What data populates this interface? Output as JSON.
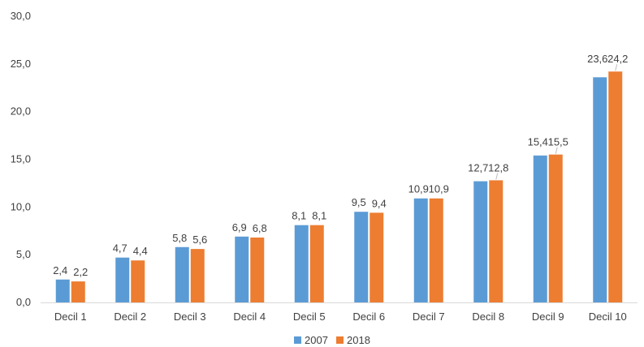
{
  "chart_data": {
    "type": "bar",
    "title": "",
    "xlabel": "",
    "ylabel": "",
    "ylim": [
      0,
      30
    ],
    "yticks": [
      "0,0",
      "5,0",
      "10,0",
      "15,0",
      "20,0",
      "25,0",
      "30,0"
    ],
    "grid": false,
    "legend_position": "bottom",
    "categories": [
      "Decil 1",
      "Decil 2",
      "Decil 3",
      "Decil 4",
      "Decil 5",
      "Decil 6",
      "Decil 7",
      "Decil 8",
      "Decil 9",
      "Decil 10"
    ],
    "series": [
      {
        "name": "2007",
        "color": "#5B9BD5",
        "values": [
          2.4,
          4.7,
          5.8,
          6.9,
          8.1,
          9.5,
          10.9,
          12.7,
          15.4,
          23.6
        ],
        "labels": [
          "2,4",
          "4,7",
          "5,8",
          "6,9",
          "8,1",
          "9,5",
          "10,9",
          "12,7",
          "15,4",
          "23,6"
        ]
      },
      {
        "name": "2018",
        "color": "#ED7D31",
        "values": [
          2.2,
          4.4,
          5.6,
          6.8,
          8.1,
          9.4,
          10.9,
          12.8,
          15.5,
          24.2
        ],
        "labels": [
          "2,2",
          "4,4",
          "5,6",
          "6,8",
          "8,1",
          "9,4",
          "10,9",
          "12,8",
          "15,5",
          "24,2"
        ]
      }
    ]
  }
}
